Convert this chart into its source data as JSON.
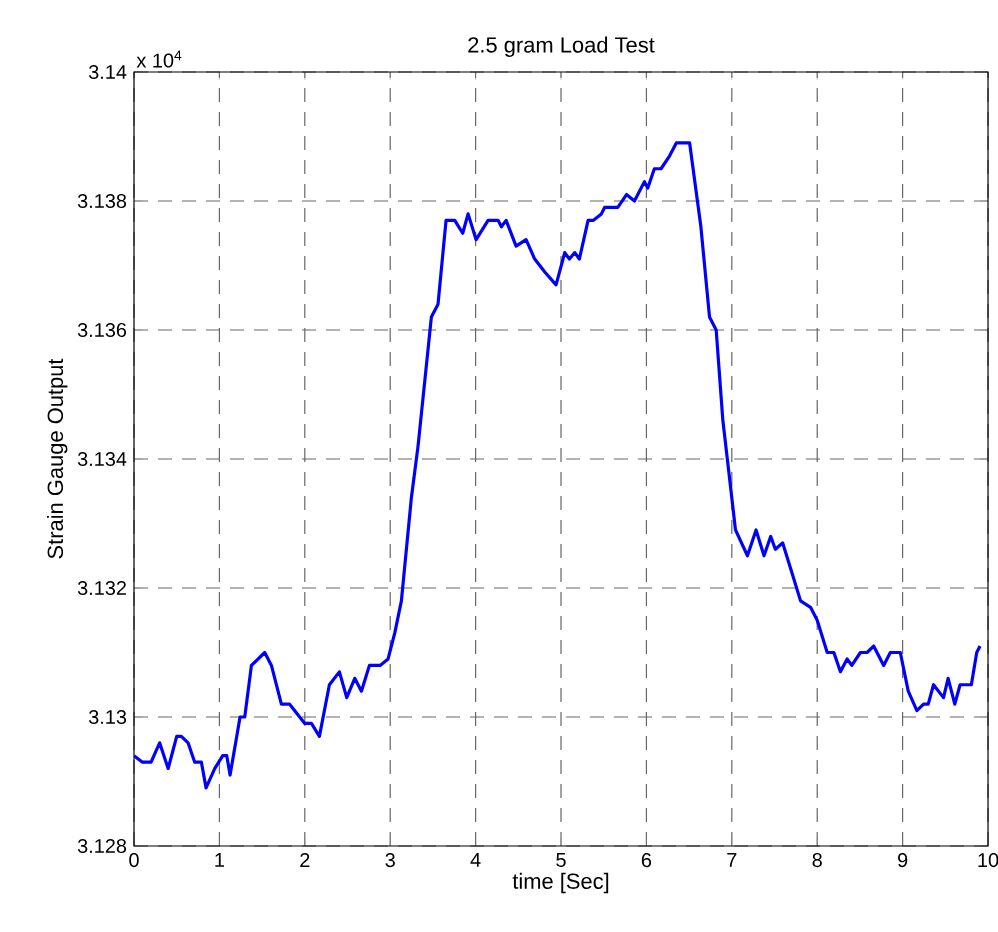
{
  "chart_data": {
    "type": "line",
    "title": "2.5 gram Load Test",
    "xlabel": "time [Sec]",
    "ylabel": "Strain Gauge Output",
    "annotations": [
      "x 10$^{4}$"
    ],
    "x": [
      0.0,
      0.1,
      0.2,
      0.3,
      0.4,
      0.5,
      0.555,
      0.633,
      0.711,
      0.789,
      0.844,
      0.945,
      1.039,
      1.086,
      1.125,
      1.242,
      1.297,
      1.375,
      1.531,
      1.609,
      1.726,
      1.82,
      2.0,
      2.078,
      2.171,
      2.288,
      2.405,
      2.491,
      2.585,
      2.663,
      2.757,
      2.835,
      2.882,
      2.975,
      3.053,
      3.131,
      3.248,
      3.326,
      3.404,
      3.482,
      3.56,
      3.654,
      3.756,
      3.849,
      3.912,
      4.006,
      4.146,
      4.263,
      4.302,
      4.357,
      4.474,
      4.591,
      4.692,
      4.81,
      4.942,
      5.044,
      5.098,
      5.161,
      5.215,
      5.317,
      5.38,
      5.473,
      5.51,
      5.611,
      5.665,
      5.767,
      5.86,
      5.977,
      6.016,
      6.093,
      6.171,
      6.272,
      6.35,
      6.42,
      6.506,
      6.638,
      6.739,
      6.817,
      6.895,
      6.965,
      7.043,
      7.183,
      7.284,
      7.377,
      7.455,
      7.51,
      7.595,
      7.712,
      7.805,
      7.922,
      8.0,
      8.117,
      8.195,
      8.272,
      8.35,
      8.405,
      8.506,
      8.584,
      8.661,
      8.778,
      8.856,
      8.973,
      9.066,
      9.167,
      9.245,
      9.3,
      9.362,
      9.479,
      9.533,
      9.611,
      9.673,
      9.805,
      9.868,
      9.907
    ],
    "series": [
      {
        "color": "#0000ff",
        "values": [
          3.1294,
          3.1293,
          3.1293,
          3.1296,
          3.1292,
          3.1297,
          3.1297,
          3.1296,
          3.1293,
          3.1293,
          3.1289,
          3.1292,
          3.1294,
          3.1294,
          3.1291,
          3.13,
          3.13,
          3.1308,
          3.131,
          3.1308,
          3.1302,
          3.1302,
          3.1299,
          3.1299,
          3.1297,
          3.1305,
          3.1307,
          3.1303,
          3.1306,
          3.1304,
          3.1308,
          3.1308,
          3.1308,
          3.1309,
          3.1313,
          3.1318,
          3.1334,
          3.1342,
          3.1352,
          3.1362,
          3.1364,
          3.1377,
          3.1377,
          3.1375,
          3.1378,
          3.1374,
          3.1377,
          3.1377,
          3.1376,
          3.1377,
          3.1373,
          3.1374,
          3.1371,
          3.1369,
          3.1367,
          3.1372,
          3.1371,
          3.1372,
          3.1371,
          3.1377,
          3.1377,
          3.1378,
          3.1379,
          3.1379,
          3.1379,
          3.1381,
          3.138,
          3.1383,
          3.1382,
          3.1385,
          3.1385,
          3.1387,
          3.1389,
          3.1389,
          3.1389,
          3.1376,
          3.1362,
          3.136,
          3.1346,
          3.1338,
          3.1329,
          3.1325,
          3.1329,
          3.1325,
          3.1328,
          3.1326,
          3.1327,
          3.1322,
          3.1318,
          3.1317,
          3.1315,
          3.131,
          3.131,
          3.1307,
          3.1309,
          3.1308,
          3.131,
          3.131,
          3.1311,
          3.1308,
          3.131,
          3.131,
          3.1304,
          3.1301,
          3.1302,
          3.1302,
          3.1305,
          3.1303,
          3.1306,
          3.1302,
          3.1305,
          3.1305,
          3.131,
          3.1311
        ]
      }
    ],
    "xlim": [
      0,
      10
    ],
    "ylim": [
      3.128,
      3.14
    ],
    "xticks": [
      0,
      1,
      2,
      3,
      4,
      5,
      6,
      7,
      8,
      9,
      10
    ],
    "yticks": [
      3.128,
      3.13,
      3.132,
      3.134,
      3.136,
      3.138,
      3.14
    ],
    "grid": true
  }
}
